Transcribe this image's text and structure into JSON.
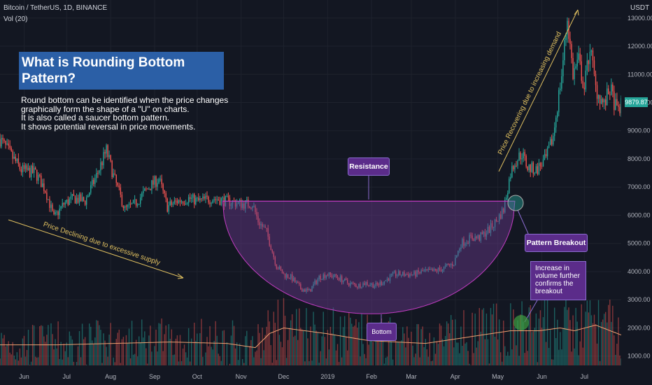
{
  "header": {
    "symbol_line": "Bitcoin / TetherUS, 1D, BINANCE",
    "volume_label": "Vol (20)"
  },
  "title_box": {
    "line1": "What is Rounding Bottom",
    "line2": "Pattern?"
  },
  "description": {
    "lines": [
      "Round bottom can be identified when the price changes",
      "graphically form the shape of a \"U\" on charts.",
      "It is also called a saucer bottom pattern.",
      "It shows potential reversal in price movements."
    ]
  },
  "annotations": {
    "resistance": "Resistance",
    "bottom": "Bottom",
    "pattern_breakout": "Pattern Breakout",
    "volume_note": "Increase in volume further confirms the breakout",
    "decline_text": "Price Declining due to excessive supply",
    "recovery_text": "Price Recovering due to increasing demand"
  },
  "price_tag": "9879.87",
  "colors": {
    "background": "#131722",
    "up": "#26a69a",
    "down": "#ef5350",
    "pattern_fill": "#6b3a8e",
    "accent_blue": "#2b5fa6",
    "callout": "#5b2c8a",
    "volume_ma": "#f0a070"
  },
  "chart_data": {
    "type": "candlestick",
    "title": "Bitcoin / TetherUS, 1D, BINANCE",
    "y_axis_label": "USDT",
    "y_ticks": [
      1000,
      2000,
      3000,
      4000,
      5000,
      6000,
      7000,
      8000,
      9000,
      10000,
      11000,
      12000,
      13000
    ],
    "y_tick_labels": [
      "1000.00",
      "2000.00",
      "3000.00",
      "4000.00",
      "5000.00",
      "6000.00",
      "7000.00",
      "8000.00",
      "9000.00",
      "10000.00",
      "11000.00",
      "12000.00",
      "13000.00"
    ],
    "ylim": [
      670,
      13640
    ],
    "x_labels": [
      "Jun",
      "Jul",
      "Aug",
      "Sep",
      "Oct",
      "Nov",
      "Dec",
      "2019",
      "Feb",
      "Mar",
      "Apr",
      "May",
      "Jun",
      "Jul"
    ],
    "x_label_days": [
      17,
      47,
      78,
      109,
      139,
      170,
      200,
      231,
      262,
      290,
      321,
      351,
      382,
      412
    ],
    "x_range_days": [
      0,
      438
    ],
    "price_path": [
      [
        0,
        8700
      ],
      [
        15,
        7600
      ],
      [
        25,
        7500
      ],
      [
        32,
        6900
      ],
      [
        38,
        5900
      ],
      [
        45,
        6400
      ],
      [
        52,
        6600
      ],
      [
        60,
        6500
      ],
      [
        68,
        7400
      ],
      [
        75,
        8300
      ],
      [
        80,
        7400
      ],
      [
        88,
        6200
      ],
      [
        95,
        6400
      ],
      [
        105,
        7000
      ],
      [
        112,
        7300
      ],
      [
        118,
        6300
      ],
      [
        125,
        6500
      ],
      [
        133,
        6600
      ],
      [
        140,
        6500
      ],
      [
        150,
        6600
      ],
      [
        155,
        6550
      ],
      [
        160,
        6500
      ],
      [
        170,
        6400
      ],
      [
        178,
        6400
      ],
      [
        182,
        5800
      ],
      [
        188,
        5400
      ],
      [
        195,
        4200
      ],
      [
        200,
        3900
      ],
      [
        205,
        3800
      ],
      [
        212,
        3400
      ],
      [
        218,
        3300
      ],
      [
        225,
        3800
      ],
      [
        230,
        3900
      ],
      [
        238,
        3800
      ],
      [
        245,
        3600
      ],
      [
        252,
        3500
      ],
      [
        258,
        3600
      ],
      [
        265,
        3500
      ],
      [
        272,
        3700
      ],
      [
        278,
        3900
      ],
      [
        285,
        3900
      ],
      [
        292,
        3900
      ],
      [
        298,
        4000
      ],
      [
        305,
        4000
      ],
      [
        312,
        4100
      ],
      [
        320,
        4300
      ],
      [
        325,
        5000
      ],
      [
        332,
        5200
      ],
      [
        338,
        5200
      ],
      [
        345,
        5500
      ],
      [
        350,
        5800
      ],
      [
        355,
        6200
      ],
      [
        360,
        7500
      ],
      [
        363,
        7900
      ],
      [
        368,
        8200
      ],
      [
        372,
        7700
      ],
      [
        378,
        7600
      ],
      [
        385,
        8000
      ],
      [
        390,
        8800
      ],
      [
        396,
        11000
      ],
      [
        400,
        13000
      ],
      [
        404,
        11000
      ],
      [
        408,
        11500
      ],
      [
        412,
        10500
      ],
      [
        416,
        12000
      ],
      [
        420,
        10500
      ],
      [
        426,
        9900
      ],
      [
        430,
        10500
      ],
      [
        435,
        9700
      ],
      [
        438,
        9880
      ]
    ],
    "volume_ma_path": [
      [
        0,
        1400
      ],
      [
        40,
        1400
      ],
      [
        80,
        1450
      ],
      [
        120,
        1500
      ],
      [
        160,
        1450
      ],
      [
        180,
        1300
      ],
      [
        190,
        1800
      ],
      [
        200,
        2000
      ],
      [
        230,
        1800
      ],
      [
        260,
        1550
      ],
      [
        300,
        1450
      ],
      [
        320,
        1600
      ],
      [
        340,
        1750
      ],
      [
        360,
        1900
      ],
      [
        380,
        1900
      ],
      [
        395,
        2000
      ],
      [
        405,
        1900
      ],
      [
        420,
        2100
      ],
      [
        438,
        1750
      ]
    ],
    "last_price": 9879.87
  }
}
